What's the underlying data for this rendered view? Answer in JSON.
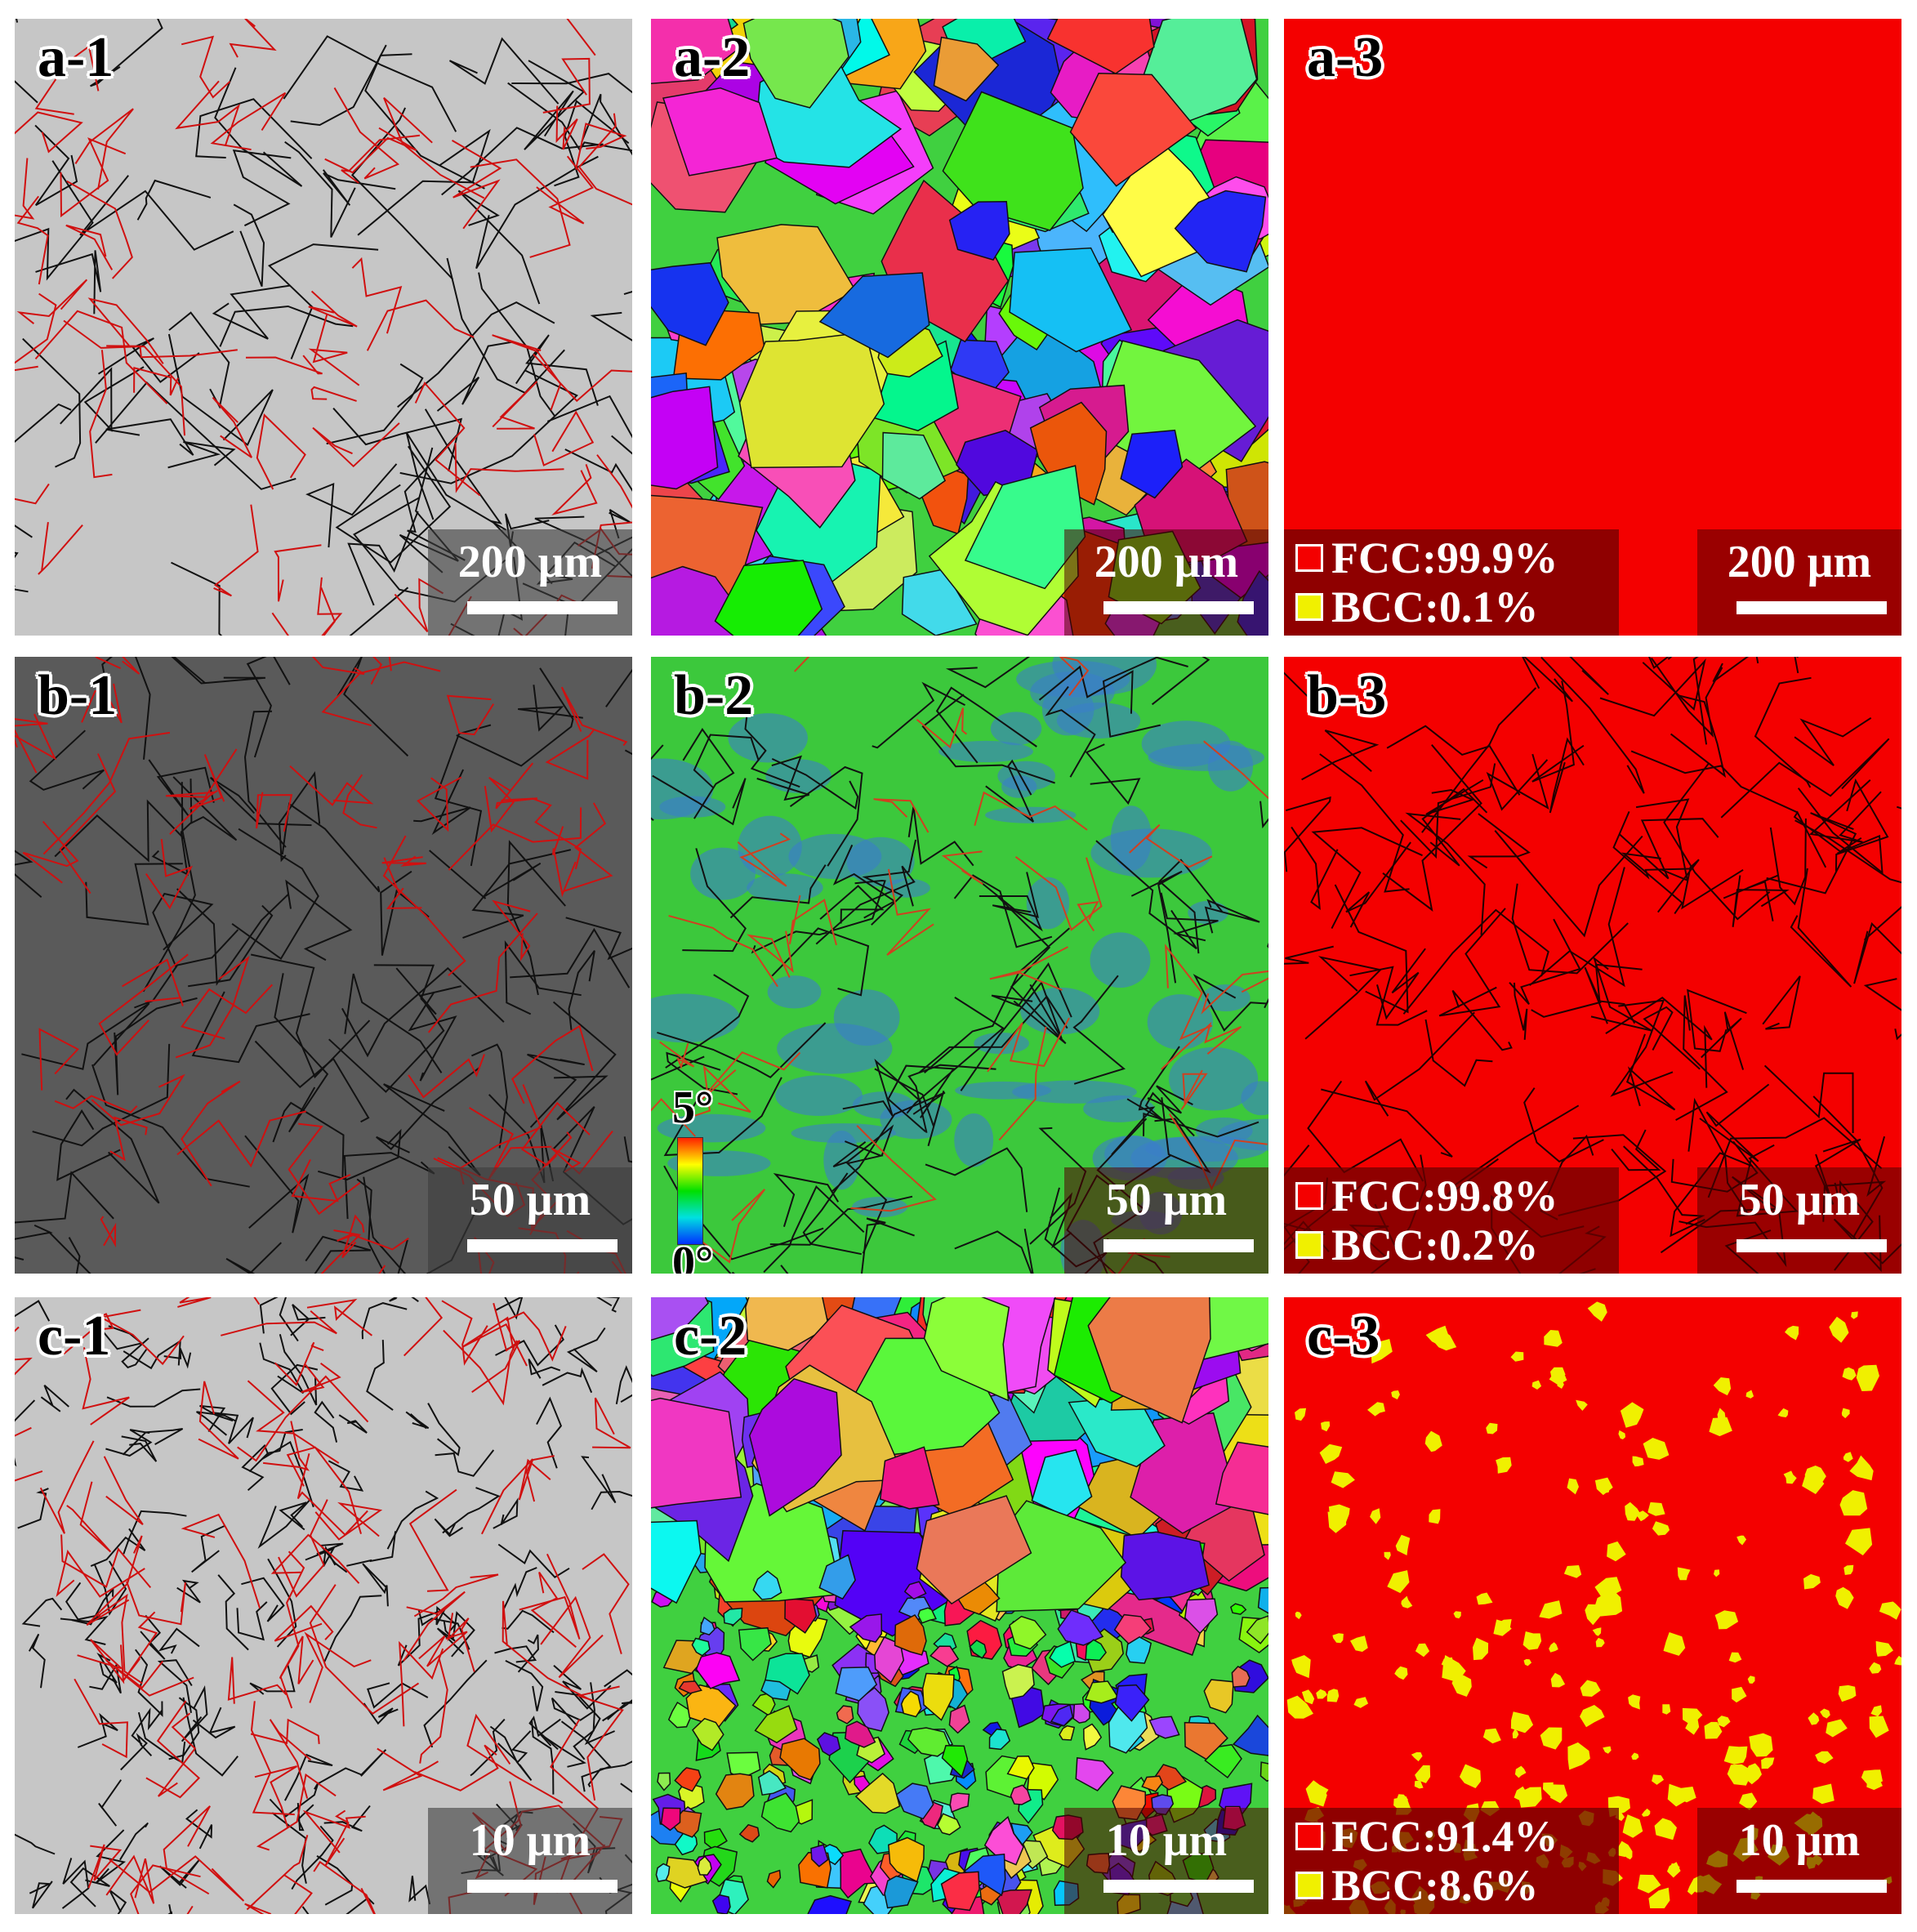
{
  "panels": [
    {
      "label": "a-1",
      "scale_bar": "200 μm"
    },
    {
      "label": "a-2",
      "scale_bar": "200 μm"
    },
    {
      "label": "a-3",
      "scale_bar": "200 μm",
      "legend": [
        "FCC:99.9%",
        "BCC:0.1%"
      ]
    },
    {
      "label": "b-1",
      "scale_bar": "50 μm"
    },
    {
      "label": "b-2",
      "scale_bar": "50 μm",
      "colorbar": [
        "5°",
        "0°"
      ]
    },
    {
      "label": "b-3",
      "scale_bar": "50 μm",
      "legend": [
        "FCC:99.8%",
        "BCC:0.2%"
      ]
    },
    {
      "label": "c-1",
      "scale_bar": "10 μm"
    },
    {
      "label": "c-2",
      "scale_bar": "10 μm"
    },
    {
      "label": "c-3",
      "scale_bar": "10 μm",
      "legend": [
        "FCC:91.4%",
        "BCC:8.6%"
      ]
    }
  ]
}
